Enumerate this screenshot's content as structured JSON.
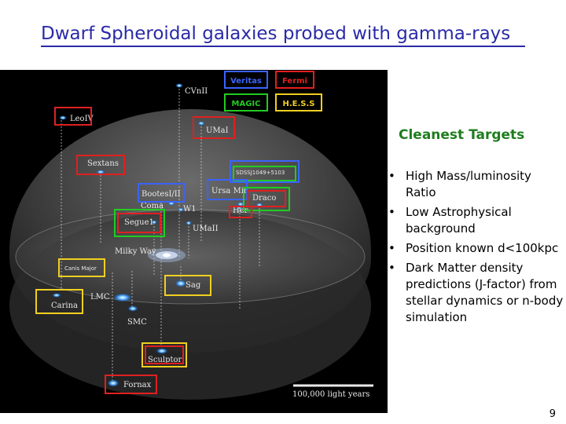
{
  "title": "Dwarf Spheroidal galaxies probed with gamma-rays",
  "legend": {
    "veritas": "Veritas",
    "fermi": "Fermi",
    "magic": "MAGIC",
    "hess": "H.E.S.S",
    "colors": {
      "veritas": "#3b63ff",
      "fermi": "#e02020",
      "magic": "#22cc22",
      "hess": "#f0d020"
    }
  },
  "galaxies": {
    "cvnii": "CVnII",
    "leoiv": "LeoIV",
    "umai": "UMaI",
    "sextans": "Sextans",
    "sdss": "SDSSJ1049+5103",
    "bootes": "BootesI/II",
    "ursa_minor": "Ursa Min",
    "draco": "Draco",
    "coma": "Coma",
    "w1": "W1",
    "hercules": "Her",
    "segue1": "Segue1",
    "umaii": "UMaII",
    "milky_way": "Milky Way",
    "canis_major": "Canis Major",
    "sag": "Sag",
    "lmc": "LMC",
    "carina": "Carina",
    "smc": "SMC",
    "sculptor": "Sculptor",
    "fornax": "Fornax"
  },
  "scale": "100,000 light years",
  "side": {
    "heading": "Cleanest Targets",
    "bullets": [
      "High Mass/luminosity Ratio",
      "Low Astrophysical background",
      "Position known d<100kpc",
      "Dark Matter density predictions (J-factor) from stellar dynamics or n-body simulation"
    ]
  },
  "page_number": "9"
}
